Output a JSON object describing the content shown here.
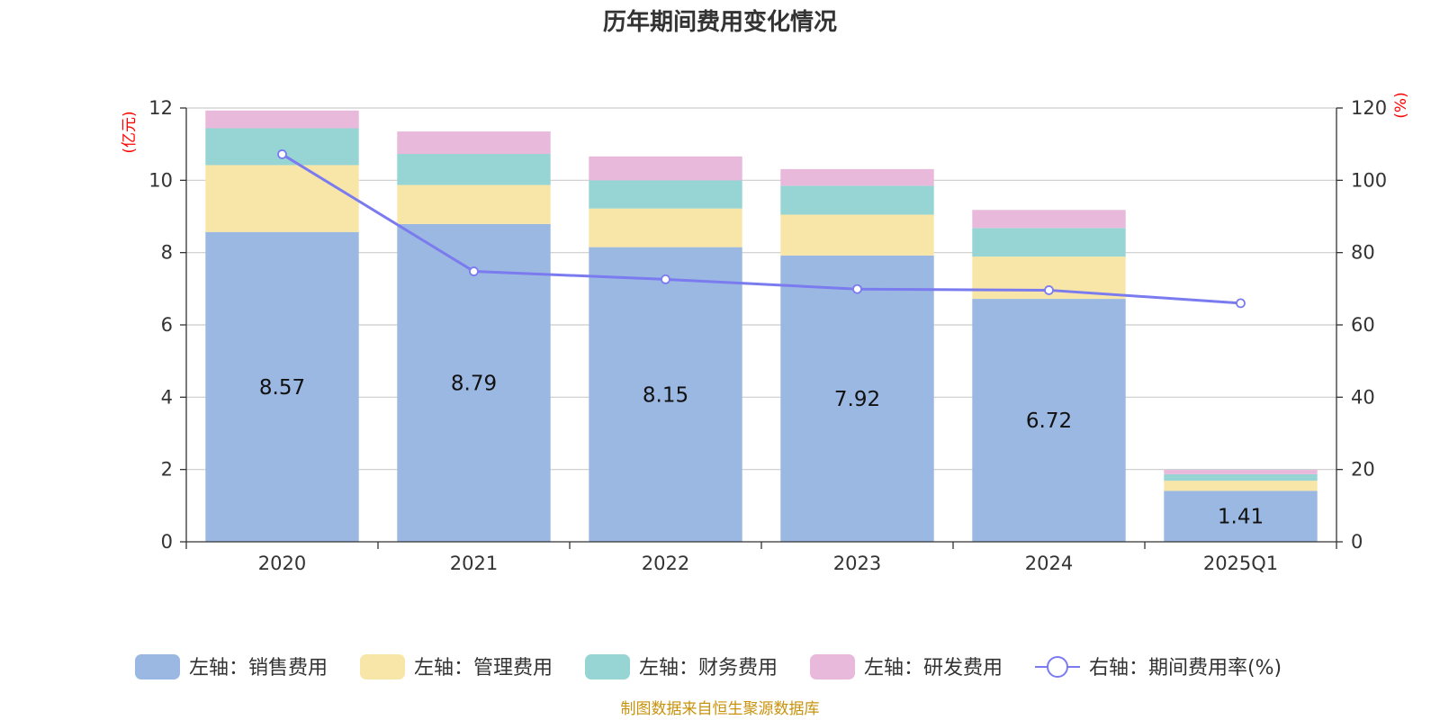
{
  "chart_data": {
    "type": "bar",
    "stacked": true,
    "title": "历年期间费用变化情况",
    "categories": [
      "2020",
      "2021",
      "2022",
      "2023",
      "2024",
      "2025Q1"
    ],
    "y_left": {
      "unit": "(亿元)",
      "ylim": [
        0,
        12
      ],
      "ticks": [
        "0",
        "2",
        "4",
        "6",
        "8",
        "10",
        "12"
      ]
    },
    "y_right": {
      "unit": "(%)",
      "ylim": [
        0,
        120
      ],
      "ticks": [
        "0",
        "20",
        "40",
        "60",
        "80",
        "100",
        "120"
      ]
    },
    "series": [
      {
        "name": "左轴：销售费用",
        "type": "bar",
        "axis": "left",
        "color": "#9bb8e2",
        "values": [
          8.57,
          8.79,
          8.15,
          7.92,
          6.72,
          1.41
        ],
        "labels": [
          "8.57",
          "8.79",
          "8.15",
          "7.92",
          "6.72",
          "1.41"
        ]
      },
      {
        "name": "左轴：管理费用",
        "type": "bar",
        "axis": "left",
        "color": "#f8e6a8",
        "values": [
          1.85,
          1.08,
          1.07,
          1.13,
          1.17,
          0.28
        ]
      },
      {
        "name": "左轴：财务费用",
        "type": "bar",
        "axis": "left",
        "color": "#97d5d5",
        "values": [
          1.02,
          0.86,
          0.78,
          0.8,
          0.79,
          0.18
        ]
      },
      {
        "name": "左轴：研发费用",
        "type": "bar",
        "axis": "left",
        "color": "#e8b9da",
        "values": [
          0.49,
          0.62,
          0.66,
          0.46,
          0.5,
          0.12
        ]
      },
      {
        "name": "右轴：期间费用率(%)",
        "type": "line",
        "axis": "right",
        "color": "#7b7bf0",
        "values": [
          107.2,
          74.8,
          72.6,
          69.9,
          69.6,
          66.0
        ]
      }
    ],
    "legend_position": "bottom",
    "grid": true
  },
  "source": "制图数据来自恒生聚源数据库"
}
